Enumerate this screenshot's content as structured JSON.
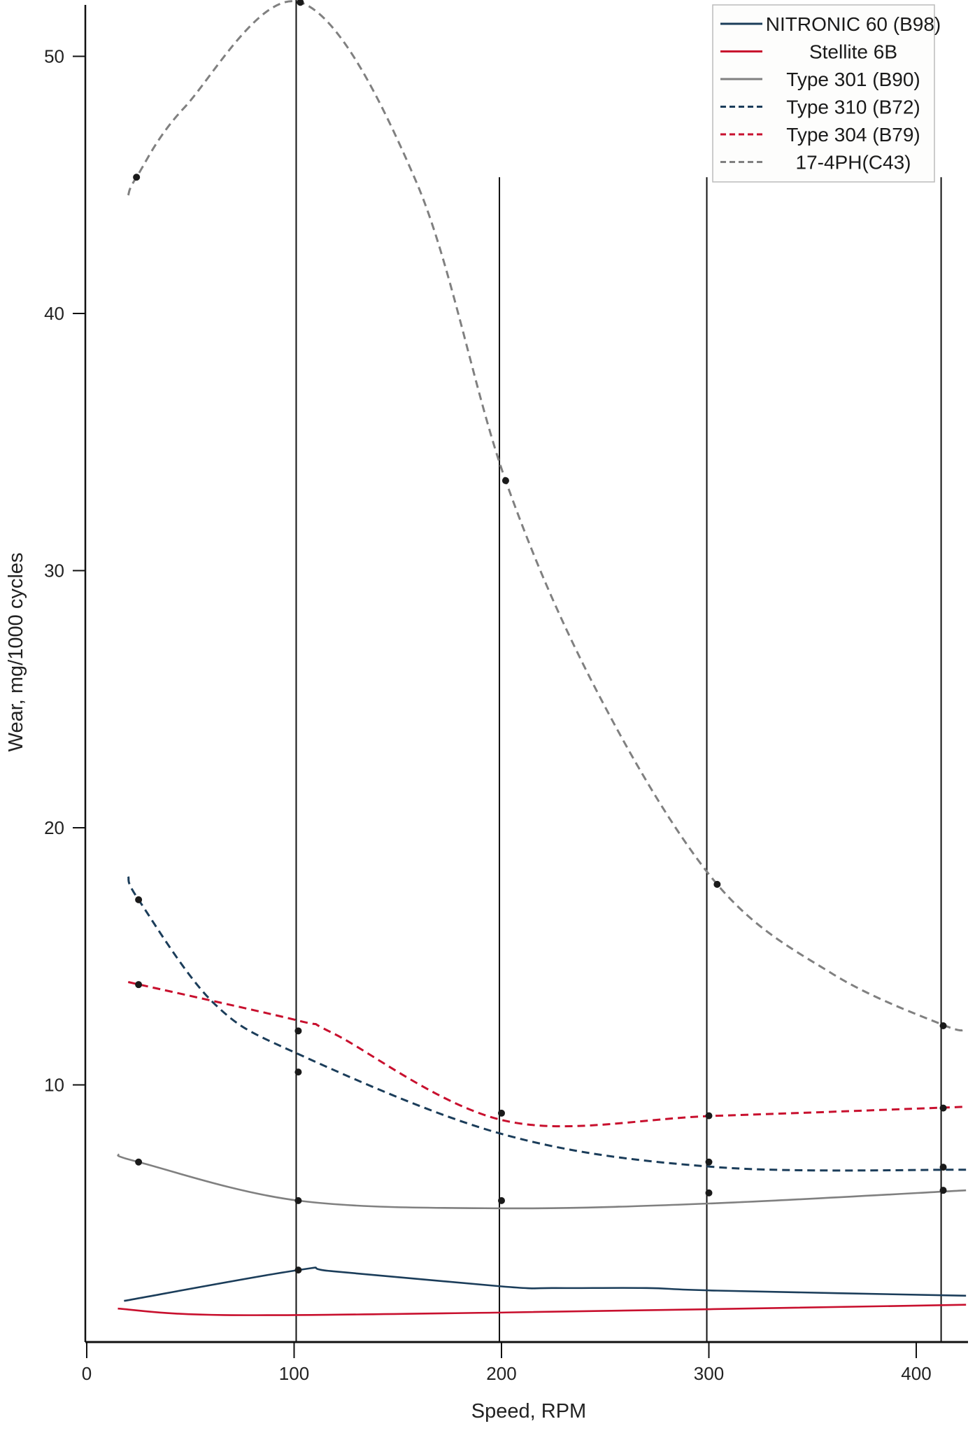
{
  "chart_data": {
    "type": "line",
    "title": "",
    "xlabel": "Speed, RPM",
    "ylabel": "Wear, mg/1000 cycles",
    "xlim": [
      0,
      425
    ],
    "ylim": [
      0,
      52
    ],
    "xticks": [
      "0",
      "100",
      "200",
      "300",
      "400"
    ],
    "yticks": [
      "10",
      "20",
      "30",
      "40",
      "50"
    ],
    "grid": false,
    "legend_position": "top-right",
    "reference_lines_x": [
      101,
      199,
      299,
      412
    ],
    "series": [
      {
        "name": "NITRONIC 60 (B98)",
        "color": "#1b3d5a",
        "dash": "solid",
        "curve": [
          [
            18,
            1.6
          ],
          [
            102,
            2.8
          ],
          [
            119,
            2.75
          ],
          [
            202,
            2.15
          ],
          [
            226,
            2.1
          ],
          [
            270,
            2.1
          ],
          [
            304,
            2.0
          ],
          [
            424,
            1.8
          ]
        ],
        "points": [
          [
            102,
            2.8
          ]
        ]
      },
      {
        "name": "Stellite 6B",
        "color": "#c8102e",
        "dash": "solid",
        "curve": [
          [
            15,
            1.3
          ],
          [
            66,
            1.05
          ],
          [
            202,
            1.15
          ],
          [
            424,
            1.45
          ]
        ],
        "points": []
      },
      {
        "name": "Type 301 (B90)",
        "color": "#808080",
        "dash": "solid",
        "curve": [
          [
            15,
            7.3
          ],
          [
            25,
            7.0
          ],
          [
            102,
            5.5
          ],
          [
            202,
            5.2
          ],
          [
            304,
            5.4
          ],
          [
            424,
            5.9
          ]
        ],
        "points": [
          [
            25,
            7.0
          ],
          [
            102,
            5.5
          ],
          [
            200,
            5.5
          ],
          [
            300,
            5.8
          ],
          [
            413,
            5.9
          ]
        ]
      },
      {
        "name": "Type 310 (B72)",
        "color": "#1b3d5a",
        "dash": "dashed",
        "curve": [
          [
            20,
            18.1
          ],
          [
            25,
            17.2
          ],
          [
            61,
            13.2
          ],
          [
            102,
            11.2
          ],
          [
            202,
            8.05
          ],
          [
            304,
            6.8
          ],
          [
            424,
            6.7
          ]
        ],
        "points": [
          [
            25,
            17.2
          ],
          [
            102,
            10.5
          ],
          [
            300,
            7.0
          ],
          [
            413,
            6.8
          ]
        ]
      },
      {
        "name": "Type 304 (B79)",
        "color": "#c8102e",
        "dash": "dashed",
        "curve": [
          [
            20,
            14.0
          ],
          [
            102,
            12.5
          ],
          [
            119,
            12.0
          ],
          [
            202,
            8.6
          ],
          [
            304,
            8.8
          ],
          [
            424,
            9.15
          ]
        ],
        "points": [
          [
            25,
            13.9
          ],
          [
            102,
            12.1
          ],
          [
            200,
            8.9
          ],
          [
            300,
            8.8
          ],
          [
            413,
            9.1
          ]
        ]
      },
      {
        "name": "17-4PH(C43)",
        "color": "#808080",
        "dash": "dashed",
        "curve": [
          [
            20,
            44.6
          ],
          [
            24,
            45.3
          ],
          [
            47,
            48.0
          ],
          [
            103,
            52.1
          ],
          [
            159,
            45.1
          ],
          [
            202,
            33.5
          ],
          [
            248,
            25.0
          ],
          [
            304,
            17.8
          ],
          [
            360,
            14.3
          ],
          [
            414,
            12.3
          ],
          [
            424,
            12.2
          ]
        ],
        "points": [
          [
            24,
            45.3
          ],
          [
            103,
            52.1
          ],
          [
            202,
            33.5
          ],
          [
            304,
            17.8
          ],
          [
            413,
            12.3
          ]
        ]
      }
    ]
  }
}
